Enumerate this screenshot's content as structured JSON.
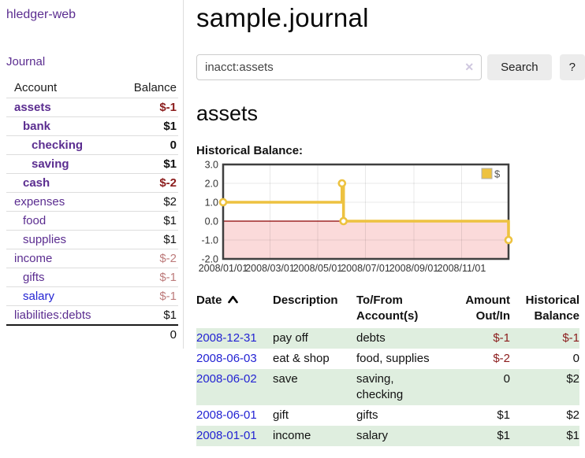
{
  "sidebar": {
    "app_title": "hledger-web",
    "journal_link": "Journal",
    "accounts_header": {
      "account": "Account",
      "balance": "Balance"
    },
    "accounts": [
      {
        "name": "assets",
        "depth": 1,
        "balance": "$-1",
        "emph": true
      },
      {
        "name": "bank",
        "depth": 2,
        "balance": "$1",
        "emph": true
      },
      {
        "name": "checking",
        "depth": 3,
        "balance": "0",
        "emph": true
      },
      {
        "name": "saving",
        "depth": 3,
        "balance": "$1",
        "emph": true
      },
      {
        "name": "cash",
        "depth": 2,
        "balance": "$-2",
        "emph": true
      },
      {
        "name": "expenses",
        "depth": 1,
        "balance": "$2"
      },
      {
        "name": "food",
        "depth": 2,
        "balance": "$1"
      },
      {
        "name": "supplies",
        "depth": 2,
        "balance": "$1"
      },
      {
        "name": "income",
        "depth": 1,
        "balance": "$-2"
      },
      {
        "name": "gifts",
        "depth": 2,
        "balance": "$-1"
      },
      {
        "name": "salary",
        "depth": 2,
        "balance": "$-1",
        "link_style": "blue"
      },
      {
        "name": "liabilities:debts",
        "depth": 1,
        "balance": "$1"
      }
    ],
    "total": "0"
  },
  "main": {
    "title": "sample.journal",
    "search": {
      "value": "inacct:assets",
      "clear_icon": "✕",
      "button_label": "Search",
      "help_label": "?"
    },
    "account_heading": "assets",
    "chart_label": "Historical Balance:"
  },
  "chart_data": {
    "type": "line",
    "step": true,
    "title": "Historical Balance:",
    "legend": [
      {
        "label": "$",
        "color": "#edc240"
      }
    ],
    "legend_position": "top-right",
    "grid": true,
    "xlim": [
      "2008-01-01",
      "2008-12-31"
    ],
    "ylim": [
      -2,
      3
    ],
    "x_tick_labels": [
      "2008/01/01",
      "2008/03/01",
      "2008/05/01",
      "2008/07/01",
      "2008/09/01",
      "2008/11/01"
    ],
    "x_tick_dates": [
      "2008-01-01",
      "2008-03-01",
      "2008-05-01",
      "2008-07-01",
      "2008-09-01",
      "2008-11-01"
    ],
    "y_tick_labels": [
      "3.0",
      "2.0",
      "1.0",
      "0.0",
      "-1.0",
      "-2.0"
    ],
    "y_tick_values": [
      3,
      2,
      1,
      0,
      -1,
      -2
    ],
    "series": [
      {
        "name": "$",
        "color": "#edc240",
        "marker": "circle",
        "points": [
          {
            "date": "2008-01-01",
            "value": 1
          },
          {
            "date": "2008-06-01",
            "value": 2
          },
          {
            "date": "2008-06-03",
            "value": 0
          },
          {
            "date": "2008-12-31",
            "value": -1
          }
        ]
      }
    ],
    "zero_line_color": "#8b0000",
    "negative_region_color": "#fbdada"
  },
  "register": {
    "headers": {
      "date": "Date",
      "description": "Description",
      "accounts": "To/From Account(s)",
      "amount": "Amount Out/In",
      "balance": "Historical Balance"
    },
    "rows": [
      {
        "date": "2008-12-31",
        "description": "pay off",
        "accounts": "debts",
        "amount": "$-1",
        "balance": "$-1"
      },
      {
        "date": "2008-06-03",
        "description": "eat & shop",
        "accounts": "food, supplies",
        "amount": "$-2",
        "balance": "0"
      },
      {
        "date": "2008-06-02",
        "description": "save",
        "accounts": "saving, checking",
        "amount": "0",
        "balance": "$2"
      },
      {
        "date": "2008-06-01",
        "description": "gift",
        "accounts": "gifts",
        "amount": "$1",
        "balance": "$2"
      },
      {
        "date": "2008-01-01",
        "description": "income",
        "accounts": "salary",
        "amount": "$1",
        "balance": "$1"
      }
    ]
  },
  "colors": {
    "link_purple": "#5b2d90",
    "link_blue": "#2323d3",
    "negative_strong": "#8b1c1c",
    "negative_dim": "#bd7b7b",
    "row_green": "#dfeedf",
    "chart_line_gold": "#edc240",
    "chart_negative_pink": "#fbdada",
    "chart_zero_line": "#8b0000"
  }
}
